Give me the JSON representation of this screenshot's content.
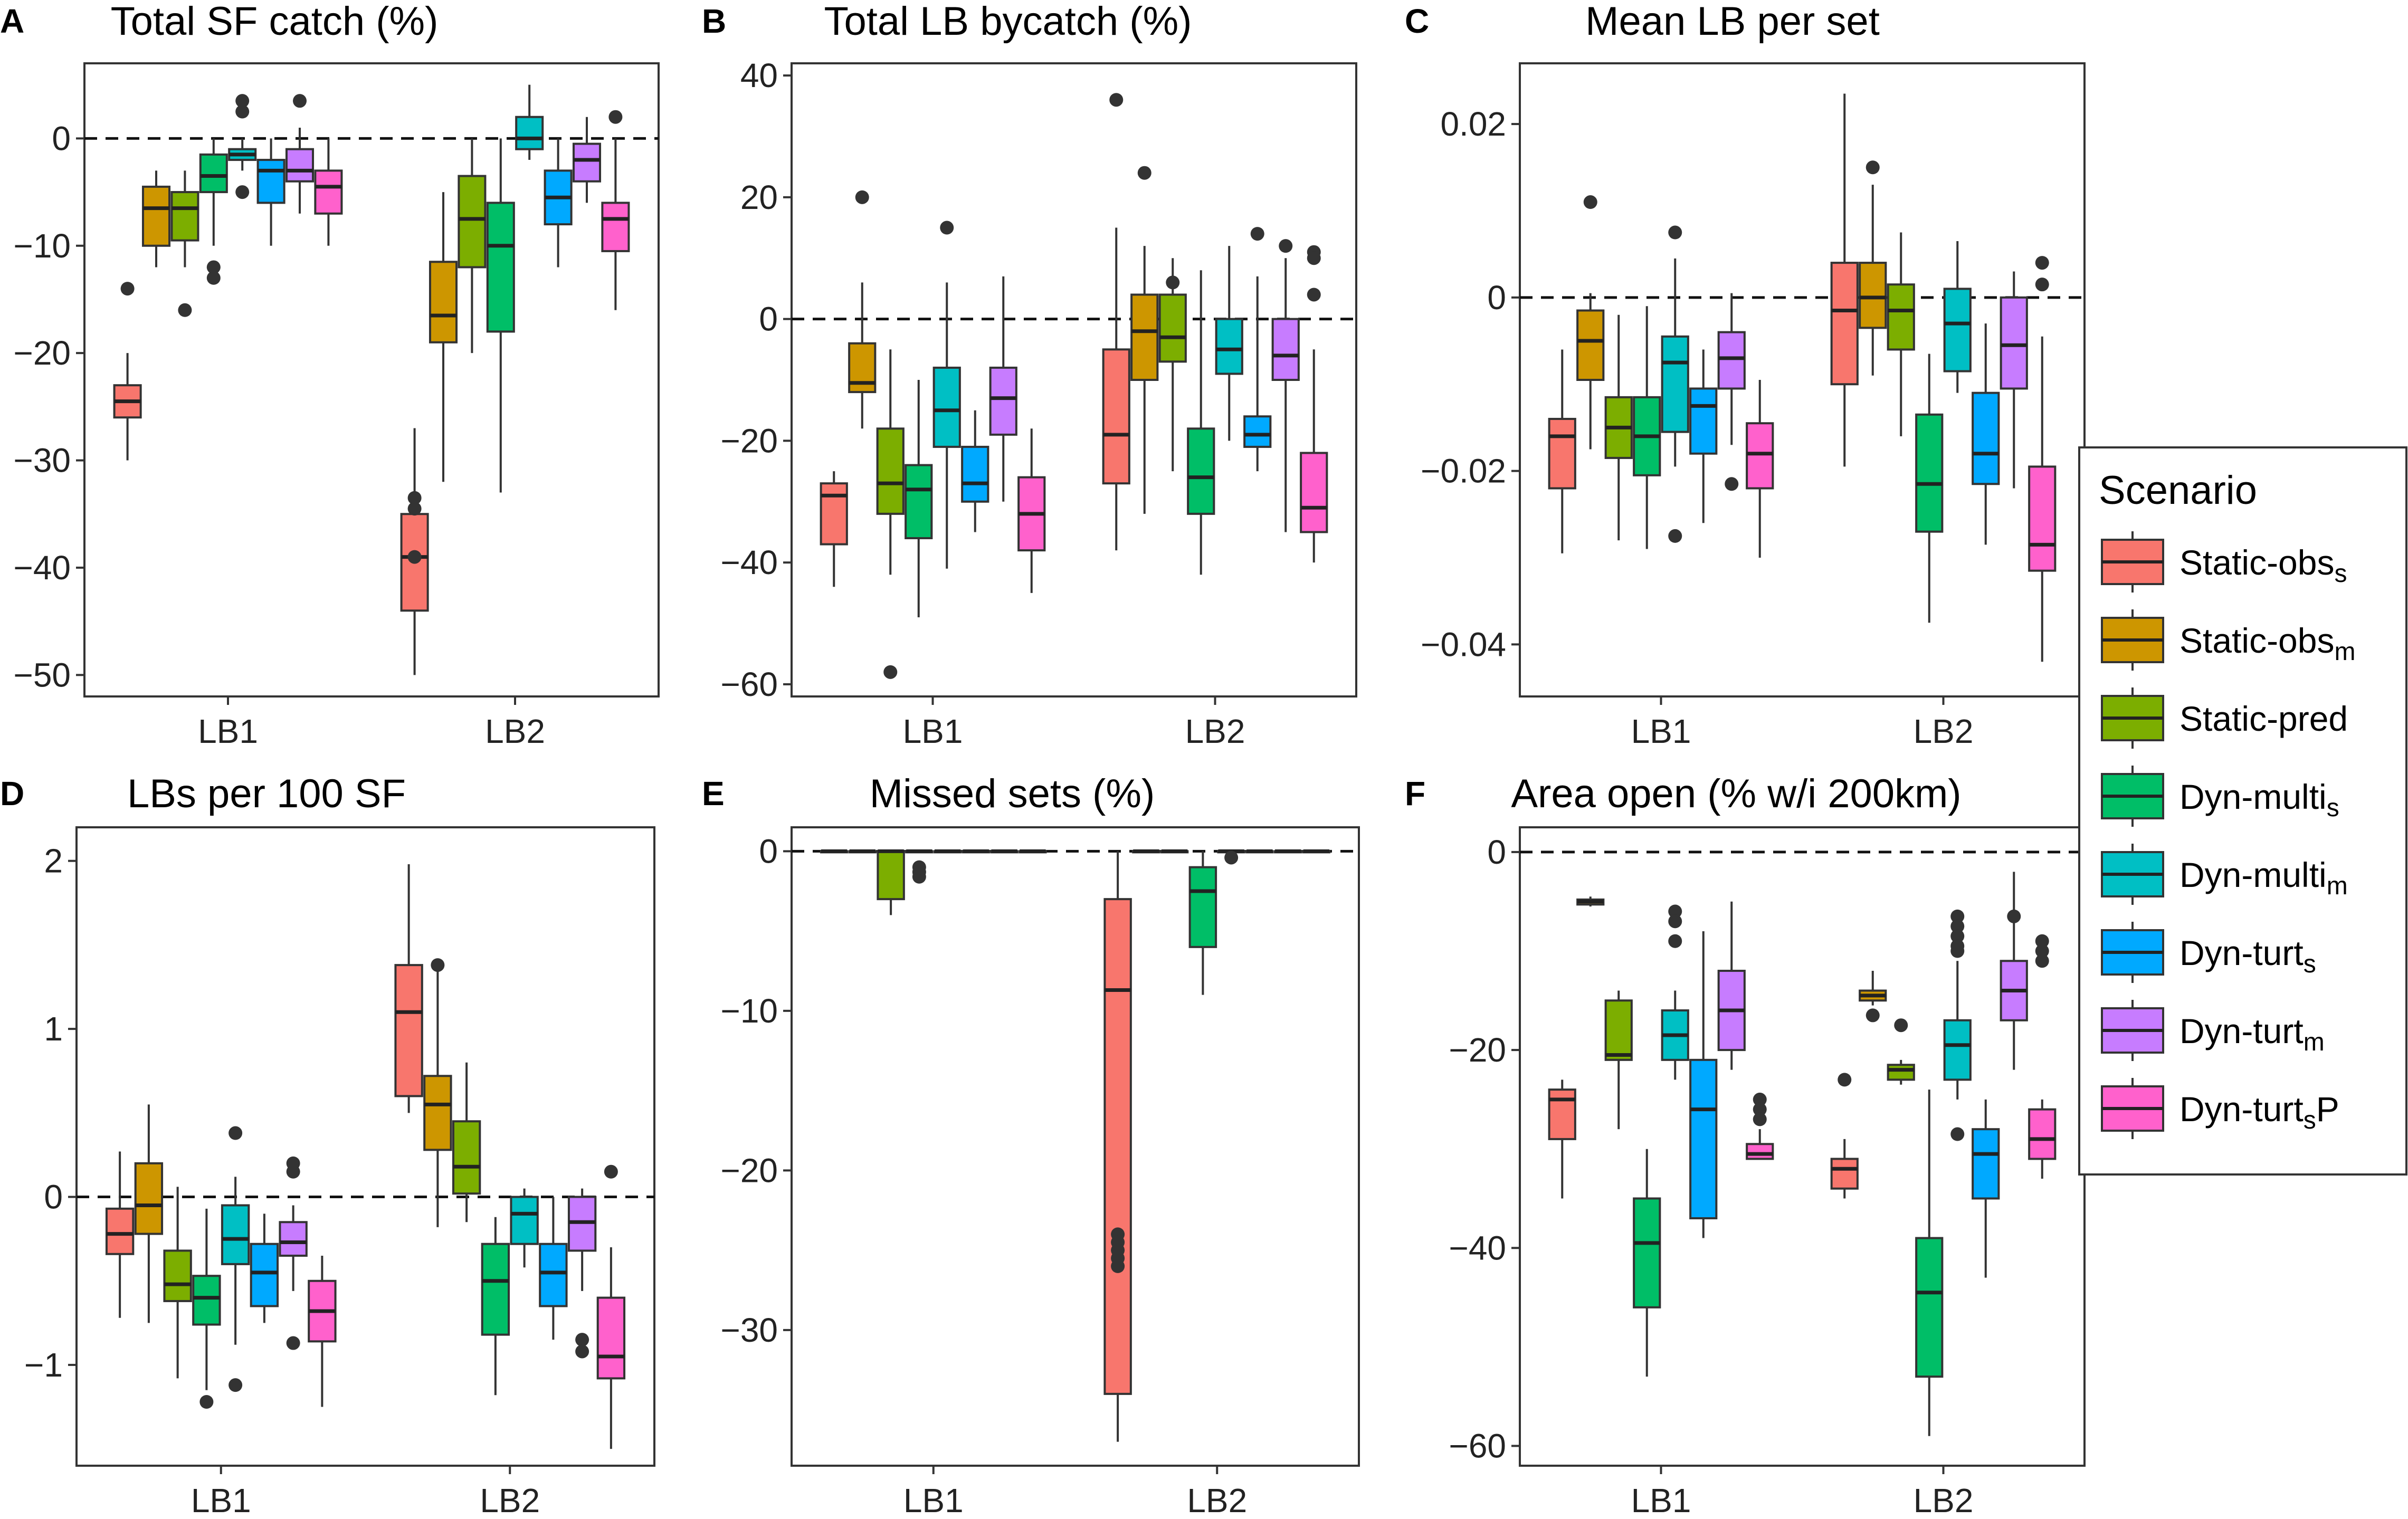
{
  "legend": {
    "title": "Scenario",
    "entries": [
      {
        "base": "Static-obs",
        "sub": "s",
        "suffix": "",
        "color": "#F8766D"
      },
      {
        "base": "Static-obs",
        "sub": "m",
        "suffix": "",
        "color": "#CD9600"
      },
      {
        "base": "Static-pred",
        "sub": "",
        "suffix": "",
        "color": "#7CAE00"
      },
      {
        "base": "Dyn-multi",
        "sub": "s",
        "suffix": "",
        "color": "#00BE67"
      },
      {
        "base": "Dyn-multi",
        "sub": "m",
        "suffix": "",
        "color": "#00BFC4"
      },
      {
        "base": "Dyn-turt",
        "sub": "s",
        "suffix": "",
        "color": "#00A9FF"
      },
      {
        "base": "Dyn-turt",
        "sub": "m",
        "suffix": "",
        "color": "#C77CFF"
      },
      {
        "base": "Dyn-turt",
        "sub": "s",
        "suffix": "P",
        "color": "#FF61CC"
      }
    ]
  },
  "chart_data": [
    {
      "panel": "A",
      "title": "Total SF catch (%)",
      "type": "boxplot",
      "categories": [
        "LB1",
        "LB2"
      ],
      "ylim": [
        -52,
        7
      ],
      "yticks": [
        0,
        -10,
        -20,
        -30,
        -40,
        -50
      ],
      "reference_line": 0,
      "boxes": [
        [
          [
            -30,
            -26,
            -24.5,
            -23,
            -20,
            [
              -14
            ]
          ],
          [
            -12,
            -10,
            -6.5,
            -4.5,
            -3,
            []
          ],
          [
            -12,
            -9.5,
            -6.5,
            -5,
            -3,
            [
              -16
            ]
          ],
          [
            -10,
            -5,
            -3.5,
            -1.5,
            0,
            [
              -12,
              -13
            ]
          ],
          [
            -3,
            -2,
            -1.5,
            -1,
            0,
            [
              3.5,
              2.5,
              -5
            ]
          ],
          [
            -10,
            -6,
            -3,
            -2,
            0,
            []
          ],
          [
            -7,
            -4,
            -3,
            -1,
            1,
            [
              3.5
            ]
          ],
          [
            -10,
            -7,
            -4.5,
            -3,
            0,
            []
          ]
        ],
        [
          [
            -50,
            -44,
            -39,
            -35,
            -27,
            [
              -33.5,
              -34.5,
              -39
            ]
          ],
          [
            -32,
            -19,
            -16.5,
            -11.5,
            -5,
            []
          ],
          [
            -20,
            -12,
            -7.5,
            -3.5,
            0,
            []
          ],
          [
            -33,
            -18,
            -10,
            -6,
            0,
            []
          ],
          [
            -2,
            -1,
            0,
            2,
            5,
            []
          ],
          [
            -12,
            -8,
            -5.5,
            -3,
            0,
            []
          ],
          [
            -6,
            -4,
            -2,
            -0.5,
            2,
            []
          ],
          [
            -16,
            -10.5,
            -7.5,
            -6,
            0,
            [
              2
            ]
          ]
        ]
      ]
    },
    {
      "panel": "B",
      "title": "Total LB bycatch (%)",
      "type": "boxplot",
      "categories": [
        "LB1",
        "LB2"
      ],
      "ylim": [
        -62,
        42
      ],
      "yticks": [
        40,
        20,
        0,
        -20,
        -40,
        -60
      ],
      "reference_line": 0,
      "boxes": [
        [
          [
            -44,
            -37,
            -29,
            -27,
            -25,
            []
          ],
          [
            -18,
            -12,
            -10.5,
            -4,
            6,
            [
              20
            ]
          ],
          [
            -42,
            -32,
            -27,
            -18,
            -5,
            [
              -58
            ]
          ],
          [
            -49,
            -36,
            -28,
            -24,
            -10,
            []
          ],
          [
            -41,
            -21,
            -15,
            -8,
            6,
            [
              15
            ]
          ],
          [
            -35,
            -30,
            -27,
            -21,
            -15,
            []
          ],
          [
            -30,
            -19,
            -13,
            -8,
            7,
            []
          ],
          [
            -45,
            -38,
            -32,
            -26,
            -18,
            []
          ]
        ],
        [
          [
            -38,
            -27,
            -19,
            -5,
            15,
            [
              36
            ]
          ],
          [
            -32,
            -10,
            -2,
            4,
            12,
            [
              24
            ]
          ],
          [
            -25,
            -7,
            -3,
            4,
            10,
            [
              6
            ]
          ],
          [
            -42,
            -32,
            -26,
            -18,
            8,
            []
          ],
          [
            -20,
            -9,
            -5,
            0,
            12,
            []
          ],
          [
            -25,
            -21,
            -19,
            -16,
            7,
            [
              14
            ]
          ],
          [
            -35,
            -10,
            -6,
            0,
            10,
            [
              12
            ]
          ],
          [
            -40,
            -35,
            -31,
            -22,
            -5,
            [
              4,
              11,
              10
            ]
          ]
        ]
      ]
    },
    {
      "panel": "C",
      "title": "Mean LB per set",
      "type": "boxplot",
      "categories": [
        "LB1",
        "LB2"
      ],
      "ylim": [
        -0.046,
        0.027
      ],
      "yticks": [
        0.02,
        0,
        -0.02,
        -0.04
      ],
      "reference_line": 0,
      "boxes": [
        [
          [
            -0.0295,
            -0.022,
            -0.016,
            -0.014,
            -0.006,
            []
          ],
          [
            -0.0175,
            -0.0095,
            -0.005,
            -0.0015,
            0.0005,
            [
              0.011
            ]
          ],
          [
            -0.028,
            -0.0185,
            -0.015,
            -0.0115,
            -0.002,
            []
          ],
          [
            -0.029,
            -0.0205,
            -0.016,
            -0.0115,
            -0.001,
            []
          ],
          [
            -0.0195,
            -0.0155,
            -0.0075,
            -0.0045,
            0.0045,
            [
              0.0075,
              -0.0275
            ]
          ],
          [
            -0.026,
            -0.018,
            -0.0125,
            -0.0105,
            -0.006,
            []
          ],
          [
            -0.017,
            -0.0105,
            -0.007,
            -0.004,
            0.0005,
            [
              -0.0215
            ]
          ],
          [
            -0.03,
            -0.022,
            -0.018,
            -0.0145,
            -0.0095,
            []
          ]
        ],
        [
          [
            -0.0195,
            -0.01,
            -0.0015,
            0.004,
            0.0235,
            []
          ],
          [
            -0.009,
            -0.0035,
            0.0,
            0.004,
            0.013,
            [
              0.015
            ]
          ],
          [
            -0.016,
            -0.006,
            -0.0015,
            0.0015,
            0.0075,
            []
          ],
          [
            -0.0375,
            -0.027,
            -0.0215,
            -0.0135,
            -0.0065,
            []
          ],
          [
            -0.011,
            -0.0085,
            -0.003,
            0.001,
            0.0065,
            []
          ],
          [
            -0.0285,
            -0.0215,
            -0.018,
            -0.011,
            -0.003,
            []
          ],
          [
            -0.022,
            -0.0105,
            -0.0055,
            0.0,
            0.003,
            []
          ],
          [
            -0.042,
            -0.0315,
            -0.0285,
            -0.0195,
            -0.0045,
            [
              0.004,
              0.0015
            ]
          ]
        ]
      ]
    },
    {
      "panel": "D",
      "title": "LBs per 100 SF",
      "type": "boxplot",
      "categories": [
        "LB1",
        "LB2"
      ],
      "ylim": [
        -1.6,
        2.2
      ],
      "yticks": [
        2,
        1,
        0,
        -1
      ],
      "reference_line": 0,
      "boxes": [
        [
          [
            -0.72,
            -0.34,
            -0.22,
            -0.07,
            0.27,
            []
          ],
          [
            -0.75,
            -0.22,
            -0.05,
            0.2,
            0.55,
            []
          ],
          [
            -1.08,
            -0.62,
            -0.52,
            -0.32,
            0.06,
            []
          ],
          [
            -1.15,
            -0.76,
            -0.6,
            -0.47,
            -0.07,
            [
              -1.22
            ]
          ],
          [
            -0.88,
            -0.4,
            -0.25,
            -0.05,
            0.12,
            [
              0.38,
              -1.12
            ]
          ],
          [
            -0.75,
            -0.65,
            -0.45,
            -0.28,
            -0.1,
            []
          ],
          [
            -0.56,
            -0.35,
            -0.27,
            -0.15,
            -0.05,
            [
              0.2,
              0.15,
              -0.87
            ]
          ],
          [
            -1.25,
            -0.86,
            -0.68,
            -0.5,
            -0.35,
            []
          ]
        ],
        [
          [
            0.5,
            0.6,
            1.1,
            1.38,
            1.98,
            []
          ],
          [
            -0.18,
            0.28,
            0.55,
            0.72,
            1.35,
            [
              1.38
            ]
          ],
          [
            -0.15,
            0.02,
            0.18,
            0.45,
            0.8,
            []
          ],
          [
            -1.18,
            -0.82,
            -0.5,
            -0.28,
            -0.12,
            []
          ],
          [
            -0.42,
            -0.28,
            -0.1,
            0.0,
            0.05,
            []
          ],
          [
            -0.85,
            -0.65,
            -0.45,
            -0.28,
            0.0,
            []
          ],
          [
            -0.56,
            -0.32,
            -0.15,
            0.0,
            0.05,
            [
              -0.85,
              -0.92
            ]
          ],
          [
            -1.5,
            -1.08,
            -0.95,
            -0.6,
            -0.3,
            [
              0.15
            ]
          ]
        ]
      ]
    },
    {
      "panel": "E",
      "title": "Missed sets (%)",
      "type": "boxplot",
      "categories": [
        "LB1",
        "LB2"
      ],
      "ylim": [
        -38.5,
        1.5
      ],
      "yticks": [
        0,
        -10,
        -20,
        -30
      ],
      "reference_line": 0,
      "boxes": [
        [
          [
            0,
            0,
            0,
            0,
            0,
            []
          ],
          [
            0,
            0,
            0,
            0,
            0,
            []
          ],
          [
            -4,
            -3,
            0,
            0,
            0,
            []
          ],
          [
            0,
            0,
            0,
            0,
            0,
            [
              -1,
              -1.6,
              -1.3
            ]
          ],
          [
            0,
            0,
            0,
            0,
            0,
            []
          ],
          [
            0,
            0,
            0,
            0,
            0,
            []
          ],
          [
            0,
            0,
            0,
            0,
            0,
            []
          ],
          [
            0,
            0,
            0,
            0,
            0,
            []
          ]
        ],
        [
          [
            -37,
            -34,
            -8.7,
            -3,
            0,
            [
              -24,
              -24.5,
              -25,
              -25.5,
              -26
            ]
          ],
          [
            0,
            0,
            0,
            0,
            0,
            []
          ],
          [
            0,
            0,
            0,
            0,
            0,
            []
          ],
          [
            -9,
            -6,
            -2.5,
            -1,
            0,
            []
          ],
          [
            0,
            0,
            0,
            0,
            0,
            [
              -0.4
            ]
          ],
          [
            0,
            0,
            0,
            0,
            0,
            []
          ],
          [
            0,
            0,
            0,
            0,
            0,
            []
          ],
          [
            0,
            0,
            0,
            0,
            0,
            []
          ]
        ]
      ]
    },
    {
      "panel": "F",
      "title": "Area open (% w/i 200km)",
      "type": "boxplot",
      "categories": [
        "LB1",
        "LB2"
      ],
      "ylim": [
        -62,
        2.5
      ],
      "yticks": [
        0,
        -20,
        -40,
        -60
      ],
      "reference_line": 0,
      "boxes": [
        [
          [
            -35,
            -29,
            -25,
            -24,
            -23,
            []
          ],
          [
            -5.5,
            -5.3,
            -5,
            -4.8,
            -4.5,
            []
          ],
          [
            -28,
            -21,
            -20.5,
            -15,
            -14,
            []
          ],
          [
            -53,
            -46,
            -39.5,
            -35,
            -30,
            []
          ],
          [
            -23,
            -21,
            -18.5,
            -16,
            -14,
            [
              -6,
              -7,
              -9
            ]
          ],
          [
            -39,
            -37,
            -26,
            -21,
            -8,
            []
          ],
          [
            -22,
            -20,
            -16,
            -12,
            -5,
            []
          ],
          [
            -31,
            -31,
            -30.5,
            -29.5,
            -28,
            [
              -25,
              -26,
              -27
            ]
          ]
        ],
        [
          [
            -35,
            -34,
            -32,
            -31,
            -29,
            [
              -23
            ]
          ],
          [
            -15.5,
            -15,
            -14.5,
            -14,
            -12,
            [
              -16.5
            ]
          ],
          [
            -23.5,
            -23,
            -22,
            -21.5,
            -21,
            [
              -17.5
            ]
          ],
          [
            -59,
            -53,
            -44.5,
            -39,
            -24,
            []
          ],
          [
            -25,
            -23,
            -19.5,
            -17,
            -11,
            [
              -28.5,
              -6.5,
              -7.5,
              -8.5,
              -9.5,
              -10
            ]
          ],
          [
            -43,
            -35,
            -30.5,
            -28,
            -25,
            []
          ],
          [
            -22,
            -17,
            -14,
            -11,
            -2,
            [
              -6.5
            ]
          ],
          [
            -33,
            -31,
            -29,
            -26,
            -25,
            [
              -9,
              -10,
              -11
            ]
          ]
        ]
      ]
    }
  ]
}
